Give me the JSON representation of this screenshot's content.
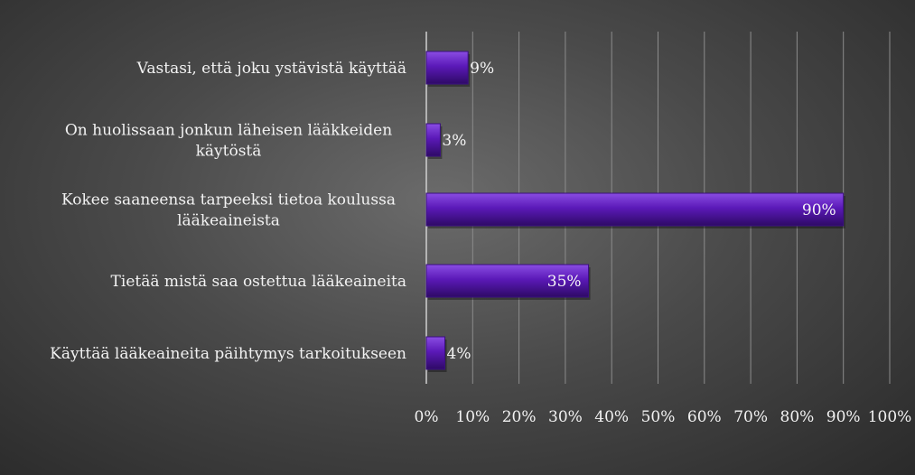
{
  "chart_data": {
    "type": "bar",
    "orientation": "horizontal",
    "categories": [
      "Vastasi, että joku ystävistä käyttää",
      "On huolissaan jonkun läheisen lääkkeiden käytöstä",
      "Kokee saaneensa tarpeeksi tietoa koulussa lääkeaineista",
      "Tietää mistä saa ostettua lääkeaineita",
      "Käyttää lääkeaineita päihtymys tarkoitukseen"
    ],
    "values": [
      9,
      3,
      90,
      35,
      4
    ],
    "data_labels": [
      "9%",
      "3%",
      "90%",
      "35%",
      "4%"
    ],
    "tick_labels": [
      "0%",
      "10%",
      "20%",
      "30%",
      "40%",
      "50%",
      "60%",
      "70%",
      "80%",
      "90%",
      "100%"
    ],
    "xlim": [
      0,
      100
    ],
    "grid": true,
    "title": "",
    "xlabel": "",
    "ylabel": "",
    "colors": {
      "bar": "#5b19b8",
      "bar_highlight": "#8a4de3",
      "bar_shadow": "#2e0a66",
      "text": "#f2f2f2",
      "grid": "#8c8c8c",
      "axis": "#d0d0d0"
    }
  }
}
